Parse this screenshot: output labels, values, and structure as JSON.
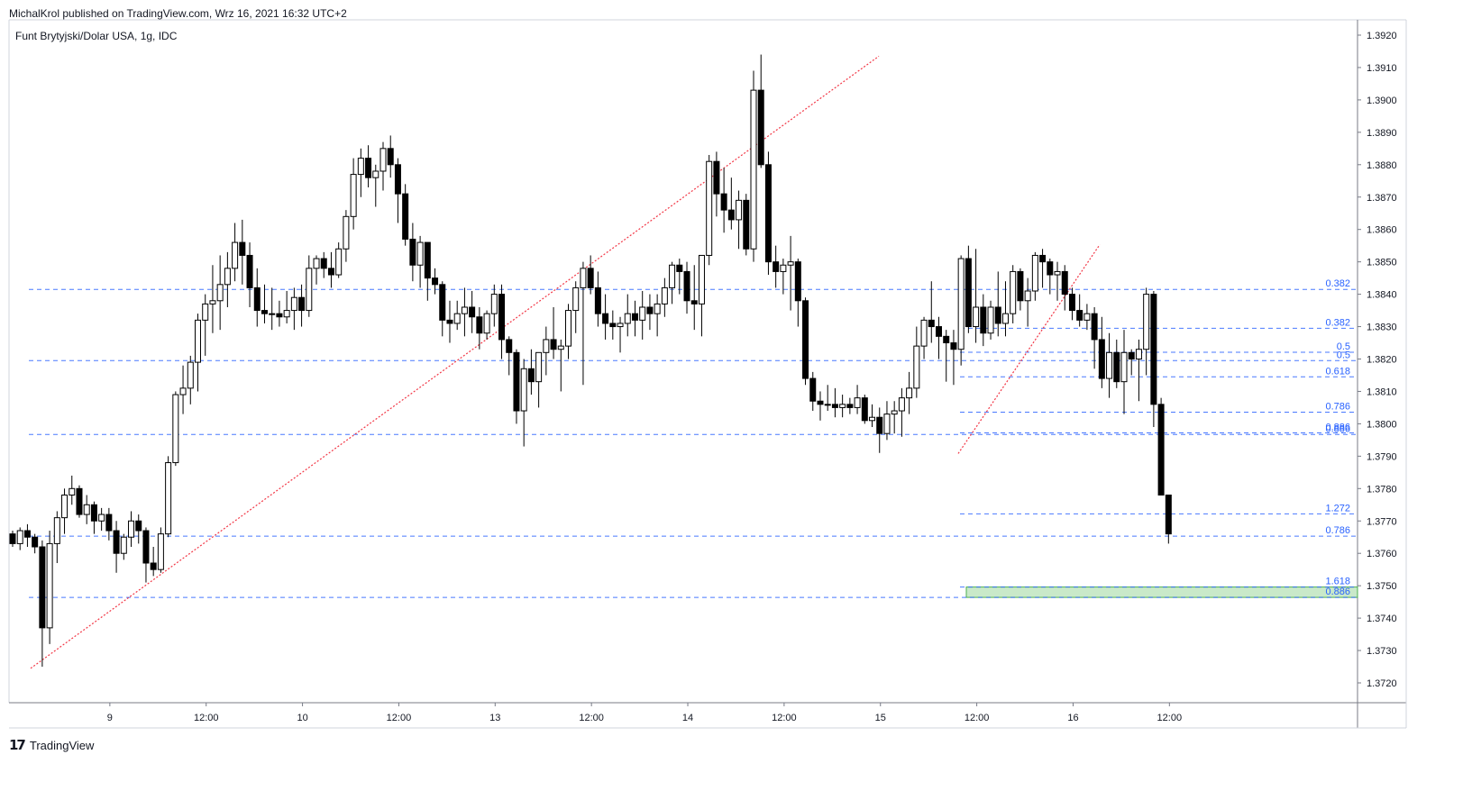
{
  "header": {
    "publisher": "MichalKrol published on TradingView.com, Wrz 16, 2021 16:32 UTC+2"
  },
  "footer": {
    "brand": "TradingView",
    "logo_icon": "tradingview-logo-icon"
  },
  "colors": {
    "bull_fill": "#ffffff",
    "bear_fill": "#000000",
    "candle_outline": "#000000",
    "fib": "#2962ff",
    "trendline": "#f23645",
    "zone": "#b2dfb2"
  },
  "chart_data": {
    "type": "candlestick",
    "symbol": "Funt Brytyjski/Dolar USA, 1g, IDC",
    "ylim": [
      1.3715,
      1.3925
    ],
    "y_ticks": [
      "1.3920",
      "1.3910",
      "1.3900",
      "1.3890",
      "1.3880",
      "1.3870",
      "1.3860",
      "1.3850",
      "1.3840",
      "1.3830",
      "1.3820",
      "1.3810",
      "1.3800",
      "1.3790",
      "1.3780",
      "1.3770",
      "1.3760",
      "1.3750",
      "1.3740",
      "1.3730",
      "1.3720"
    ],
    "x_labels": [
      "9",
      "12:00",
      "10",
      "12:00",
      "13",
      "12:00",
      "14",
      "12:00",
      "15",
      "12:00",
      "16",
      "12:00"
    ],
    "x_label_index": [
      13,
      26,
      39,
      52,
      65,
      78,
      91,
      104,
      117,
      130,
      143,
      156
    ],
    "candles": [
      [
        1.3766,
        1.3767,
        1.3762,
        1.3763
      ],
      [
        1.3763,
        1.3768,
        1.3761,
        1.3767
      ],
      [
        1.3767,
        1.3769,
        1.3762,
        1.3765
      ],
      [
        1.3765,
        1.3766,
        1.376,
        1.3762
      ],
      [
        1.3762,
        1.3764,
        1.3725,
        1.3737
      ],
      [
        1.3737,
        1.3767,
        1.3732,
        1.3763
      ],
      [
        1.3763,
        1.3773,
        1.3757,
        1.3771
      ],
      [
        1.3771,
        1.378,
        1.3766,
        1.3778
      ],
      [
        1.3778,
        1.3784,
        1.3775,
        1.378
      ],
      [
        1.378,
        1.3781,
        1.3771,
        1.3772
      ],
      [
        1.3772,
        1.3778,
        1.3769,
        1.3775
      ],
      [
        1.3775,
        1.3776,
        1.3766,
        1.377
      ],
      [
        1.377,
        1.3774,
        1.3767,
        1.3772
      ],
      [
        1.3772,
        1.3774,
        1.3764,
        1.3767
      ],
      [
        1.3767,
        1.377,
        1.3754,
        1.376
      ],
      [
        1.376,
        1.3766,
        1.3758,
        1.3765
      ],
      [
        1.3765,
        1.3773,
        1.3762,
        1.377
      ],
      [
        1.377,
        1.3772,
        1.3763,
        1.3767
      ],
      [
        1.3767,
        1.3768,
        1.3751,
        1.3757
      ],
      [
        1.3757,
        1.3762,
        1.3753,
        1.3755
      ],
      [
        1.3755,
        1.3768,
        1.3754,
        1.3766
      ],
      [
        1.3766,
        1.379,
        1.3765,
        1.3788
      ],
      [
        1.3788,
        1.381,
        1.3787,
        1.3809
      ],
      [
        1.3809,
        1.3818,
        1.3803,
        1.3811
      ],
      [
        1.3811,
        1.3821,
        1.3806,
        1.3819
      ],
      [
        1.3819,
        1.3834,
        1.381,
        1.3832
      ],
      [
        1.3832,
        1.384,
        1.3821,
        1.3837
      ],
      [
        1.3837,
        1.3849,
        1.3828,
        1.3838
      ],
      [
        1.3838,
        1.3852,
        1.3829,
        1.3843
      ],
      [
        1.3843,
        1.3853,
        1.3836,
        1.3848
      ],
      [
        1.3848,
        1.3862,
        1.3844,
        1.3856
      ],
      [
        1.3856,
        1.3863,
        1.3843,
        1.3852
      ],
      [
        1.3852,
        1.3856,
        1.3836,
        1.3842
      ],
      [
        1.3842,
        1.3848,
        1.383,
        1.3835
      ],
      [
        1.3835,
        1.3843,
        1.3831,
        1.3834
      ],
      [
        1.3834,
        1.3842,
        1.3829,
        1.3834
      ],
      [
        1.3834,
        1.3838,
        1.383,
        1.3833
      ],
      [
        1.3833,
        1.3841,
        1.3831,
        1.3835
      ],
      [
        1.3835,
        1.3842,
        1.3829,
        1.3839
      ],
      [
        1.3839,
        1.3843,
        1.383,
        1.3835
      ],
      [
        1.3835,
        1.3852,
        1.3833,
        1.3848
      ],
      [
        1.3848,
        1.3852,
        1.3843,
        1.3851
      ],
      [
        1.3851,
        1.3853,
        1.3845,
        1.3848
      ],
      [
        1.3848,
        1.3853,
        1.3842,
        1.3846
      ],
      [
        1.3846,
        1.3856,
        1.3845,
        1.3854
      ],
      [
        1.3854,
        1.3866,
        1.385,
        1.3864
      ],
      [
        1.3864,
        1.3882,
        1.386,
        1.3877
      ],
      [
        1.3877,
        1.3885,
        1.387,
        1.3882
      ],
      [
        1.3882,
        1.3886,
        1.3873,
        1.3876
      ],
      [
        1.3876,
        1.388,
        1.3867,
        1.3878
      ],
      [
        1.3878,
        1.3887,
        1.3872,
        1.3885
      ],
      [
        1.3885,
        1.3889,
        1.3876,
        1.388
      ],
      [
        1.388,
        1.3882,
        1.3862,
        1.3871
      ],
      [
        1.3871,
        1.3874,
        1.3855,
        1.3857
      ],
      [
        1.3857,
        1.3862,
        1.3844,
        1.3849
      ],
      [
        1.3849,
        1.3858,
        1.3842,
        1.3856
      ],
      [
        1.3856,
        1.3856,
        1.3838,
        1.3845
      ],
      [
        1.3845,
        1.3848,
        1.384,
        1.3843
      ],
      [
        1.3843,
        1.3844,
        1.3827,
        1.3832
      ],
      [
        1.3832,
        1.3838,
        1.3825,
        1.3831
      ],
      [
        1.3831,
        1.3838,
        1.3829,
        1.3834
      ],
      [
        1.3834,
        1.3842,
        1.3827,
        1.3836
      ],
      [
        1.3836,
        1.3841,
        1.3828,
        1.3833
      ],
      [
        1.3833,
        1.3836,
        1.3823,
        1.3828
      ],
      [
        1.3828,
        1.3835,
        1.3826,
        1.3834
      ],
      [
        1.3834,
        1.3843,
        1.383,
        1.384
      ],
      [
        1.384,
        1.3843,
        1.382,
        1.3826
      ],
      [
        1.3826,
        1.3827,
        1.3815,
        1.3822
      ],
      [
        1.3822,
        1.3823,
        1.38,
        1.3804
      ],
      [
        1.3804,
        1.382,
        1.3793,
        1.3817
      ],
      [
        1.3817,
        1.3823,
        1.3809,
        1.3813
      ],
      [
        1.3813,
        1.382,
        1.3805,
        1.3822
      ],
      [
        1.3822,
        1.383,
        1.3815,
        1.3826
      ],
      [
        1.3826,
        1.3836,
        1.382,
        1.3823
      ],
      [
        1.3823,
        1.3826,
        1.381,
        1.3824
      ],
      [
        1.3824,
        1.3837,
        1.382,
        1.3835
      ],
      [
        1.3835,
        1.3844,
        1.3828,
        1.3842
      ],
      [
        1.3842,
        1.385,
        1.3812,
        1.3848
      ],
      [
        1.3848,
        1.3852,
        1.384,
        1.3842
      ],
      [
        1.3842,
        1.3847,
        1.383,
        1.3834
      ],
      [
        1.3834,
        1.384,
        1.3826,
        1.3831
      ],
      [
        1.3831,
        1.3835,
        1.3826,
        1.383
      ],
      [
        1.383,
        1.3833,
        1.3822,
        1.3831
      ],
      [
        1.3831,
        1.384,
        1.3827,
        1.3834
      ],
      [
        1.3834,
        1.3838,
        1.3827,
        1.3832
      ],
      [
        1.3832,
        1.3841,
        1.3826,
        1.3836
      ],
      [
        1.3836,
        1.384,
        1.3829,
        1.3834
      ],
      [
        1.3834,
        1.384,
        1.3827,
        1.3837
      ],
      [
        1.3837,
        1.3845,
        1.3833,
        1.3842
      ],
      [
        1.3842,
        1.385,
        1.3837,
        1.3849
      ],
      [
        1.3849,
        1.3851,
        1.384,
        1.3847
      ],
      [
        1.3847,
        1.385,
        1.3834,
        1.3838
      ],
      [
        1.3838,
        1.3849,
        1.3829,
        1.3837
      ],
      [
        1.3837,
        1.3852,
        1.3827,
        1.3852
      ],
      [
        1.3852,
        1.3883,
        1.3849,
        1.3881
      ],
      [
        1.3881,
        1.3884,
        1.3864,
        1.3871
      ],
      [
        1.3871,
        1.3879,
        1.3859,
        1.3866
      ],
      [
        1.3866,
        1.3876,
        1.386,
        1.3863
      ],
      [
        1.3863,
        1.3872,
        1.3854,
        1.3869
      ],
      [
        1.3869,
        1.3871,
        1.3852,
        1.3854
      ],
      [
        1.3854,
        1.3909,
        1.385,
        1.3903
      ],
      [
        1.3903,
        1.3914,
        1.3879,
        1.388
      ],
      [
        1.388,
        1.3884,
        1.3846,
        1.385
      ],
      [
        1.385,
        1.3855,
        1.3842,
        1.3847
      ],
      [
        1.3847,
        1.3851,
        1.384,
        1.3849
      ],
      [
        1.3849,
        1.3858,
        1.3835,
        1.385
      ],
      [
        1.385,
        1.3851,
        1.383,
        1.3838
      ],
      [
        1.3838,
        1.3839,
        1.3812,
        1.3814
      ],
      [
        1.3814,
        1.3816,
        1.3804,
        1.3807
      ],
      [
        1.3807,
        1.381,
        1.3801,
        1.3806
      ],
      [
        1.3806,
        1.3812,
        1.3804,
        1.3806
      ],
      [
        1.3806,
        1.3811,
        1.3802,
        1.3805
      ],
      [
        1.3805,
        1.3809,
        1.3802,
        1.3806
      ],
      [
        1.3806,
        1.3808,
        1.3803,
        1.3805
      ],
      [
        1.3805,
        1.3812,
        1.3803,
        1.3808
      ],
      [
        1.3808,
        1.3809,
        1.38,
        1.3801
      ],
      [
        1.3801,
        1.3806,
        1.3799,
        1.3802
      ],
      [
        1.3802,
        1.3805,
        1.3791,
        1.3797
      ],
      [
        1.3797,
        1.3807,
        1.3795,
        1.3803
      ],
      [
        1.3803,
        1.3807,
        1.3797,
        1.3804
      ],
      [
        1.3804,
        1.3811,
        1.3796,
        1.3808
      ],
      [
        1.3808,
        1.3816,
        1.3803,
        1.3811
      ],
      [
        1.3811,
        1.383,
        1.3808,
        1.3824
      ],
      [
        1.3824,
        1.3833,
        1.382,
        1.3832
      ],
      [
        1.3832,
        1.3844,
        1.3825,
        1.383
      ],
      [
        1.383,
        1.3833,
        1.382,
        1.3827
      ],
      [
        1.3827,
        1.3829,
        1.3813,
        1.3825
      ],
      [
        1.3825,
        1.3829,
        1.3812,
        1.3823
      ],
      [
        1.3823,
        1.3852,
        1.3818,
        1.3851
      ],
      [
        1.3851,
        1.3855,
        1.3828,
        1.383
      ],
      [
        1.383,
        1.3854,
        1.3825,
        1.3836
      ],
      [
        1.3836,
        1.384,
        1.3824,
        1.3828
      ],
      [
        1.3828,
        1.3838,
        1.3826,
        1.3836
      ],
      [
        1.3836,
        1.3847,
        1.3827,
        1.3831
      ],
      [
        1.3831,
        1.3844,
        1.3827,
        1.3834
      ],
      [
        1.3834,
        1.3849,
        1.3831,
        1.3847
      ],
      [
        1.3847,
        1.3848,
        1.3835,
        1.3838
      ],
      [
        1.3838,
        1.3845,
        1.383,
        1.3841
      ],
      [
        1.3841,
        1.3853,
        1.3838,
        1.3852
      ],
      [
        1.3852,
        1.3854,
        1.3842,
        1.385
      ],
      [
        1.385,
        1.3851,
        1.384,
        1.3846
      ],
      [
        1.3846,
        1.385,
        1.3838,
        1.3847
      ],
      [
        1.3847,
        1.3849,
        1.3835,
        1.384
      ],
      [
        1.384,
        1.3842,
        1.3832,
        1.3835
      ],
      [
        1.3835,
        1.384,
        1.383,
        1.3832
      ],
      [
        1.3832,
        1.3837,
        1.3829,
        1.3834
      ],
      [
        1.3834,
        1.3836,
        1.3817,
        1.3826
      ],
      [
        1.3826,
        1.3833,
        1.3811,
        1.3814
      ],
      [
        1.3814,
        1.3828,
        1.3808,
        1.3822
      ],
      [
        1.3822,
        1.3826,
        1.3811,
        1.3813
      ],
      [
        1.3813,
        1.3829,
        1.3803,
        1.3822
      ],
      [
        1.3822,
        1.3823,
        1.3815,
        1.382
      ],
      [
        1.382,
        1.3826,
        1.3807,
        1.3823
      ],
      [
        1.3823,
        1.3842,
        1.3815,
        1.384
      ],
      [
        1.384,
        1.3841,
        1.3799,
        1.3806
      ],
      [
        1.3806,
        1.3808,
        1.3778,
        1.3778
      ],
      [
        1.3778,
        1.3778,
        1.3763,
        1.3766
      ]
    ],
    "fib_levels": [
      {
        "label": "0.382",
        "price": 1.38415,
        "x_start": 32
      },
      {
        "label": "0.5",
        "price": 1.38195,
        "x_start": 32
      },
      {
        "label": "0.886",
        "price": 1.37967,
        "x_start": 32
      },
      {
        "label": "0.786",
        "price": 1.37653,
        "x_start": 32
      },
      {
        "label": "0.886",
        "price": 1.37464,
        "x_start": 32
      },
      {
        "label": "0.382",
        "price": 1.38295,
        "x_start": 1065
      },
      {
        "label": "0.5",
        "price": 1.38221,
        "x_start": 1065
      },
      {
        "label": "0.618",
        "price": 1.38145,
        "x_start": 1065
      },
      {
        "label": "0.786",
        "price": 1.38036,
        "x_start": 1065
      },
      {
        "label": "0.886",
        "price": 1.37972,
        "x_start": 1065
      },
      {
        "label": "1.272",
        "price": 1.37722,
        "x_start": 1065
      },
      {
        "label": "1.618",
        "price": 1.37496,
        "x_start": 1065
      }
    ],
    "trendlines": [
      {
        "from": {
          "x": 34,
          "price": 1.37245
        },
        "to": {
          "x": 975,
          "price": 1.39135
        }
      },
      {
        "from": {
          "x": 1063,
          "price": 1.37908
        },
        "to": {
          "x": 1220,
          "price": 1.38553
        }
      }
    ],
    "zone": {
      "x_start": 1072,
      "x_end": 1506,
      "price_top": 1.37496,
      "price_bottom": 1.37464
    }
  }
}
